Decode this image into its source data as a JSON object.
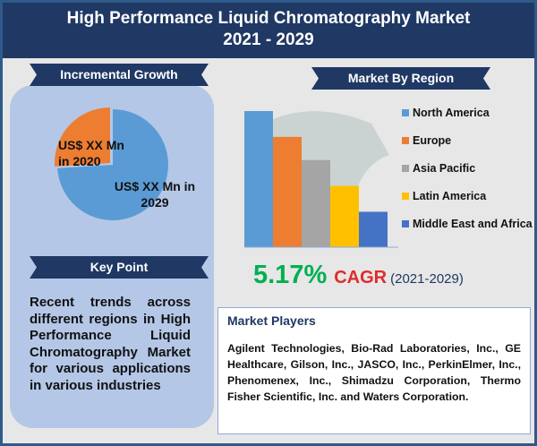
{
  "title": {
    "line1": "High Performance Liquid Chromatography Market",
    "line2": "2021 - 2029"
  },
  "incremental": {
    "heading": "Incremental Growth",
    "slice_2020": "US$ XX Mn in 2020",
    "slice_2029": "US$ XX Mn in 2029",
    "colors": {
      "2020": "#ed7d31",
      "2029": "#5b9bd5"
    }
  },
  "keypoint": {
    "heading": "Key Point",
    "text": "Recent trends across different regions in High Performance Liquid Chromatography Market for various applications in various industries"
  },
  "region": {
    "heading": "Market By Region"
  },
  "chart_data": [
    {
      "type": "pie",
      "categories": [
        "US$ XX Mn in 2020",
        "US$ XX Mn in 2029"
      ],
      "values": [
        26,
        74
      ]
    },
    {
      "type": "bar",
      "categories": [
        "North America",
        "Europe",
        "Asia Pacific",
        "Latin America",
        "Middle East and Africa"
      ],
      "values": [
        100,
        81,
        64,
        45,
        26
      ],
      "colors": [
        "#5b9bd5",
        "#ed7d31",
        "#a5a5a5",
        "#ffc000",
        "#4472c4"
      ],
      "legend": "right",
      "grid": false
    }
  ],
  "cagr": {
    "value": "5.17%",
    "label": "CAGR",
    "period": "(2021-2029)",
    "value_color": "#00b050",
    "label_color": "#e02b2b"
  },
  "players": {
    "heading": "Market Players",
    "text": "Agilent Technologies, Bio-Rad Laboratories, Inc., GE Healthcare, Gilson, Inc., JASCO, Inc., PerkinElmer, Inc., Phenomenex, Inc., Shimadzu Corporation, Thermo Fisher Scientific, Inc. and Waters Corporation."
  }
}
